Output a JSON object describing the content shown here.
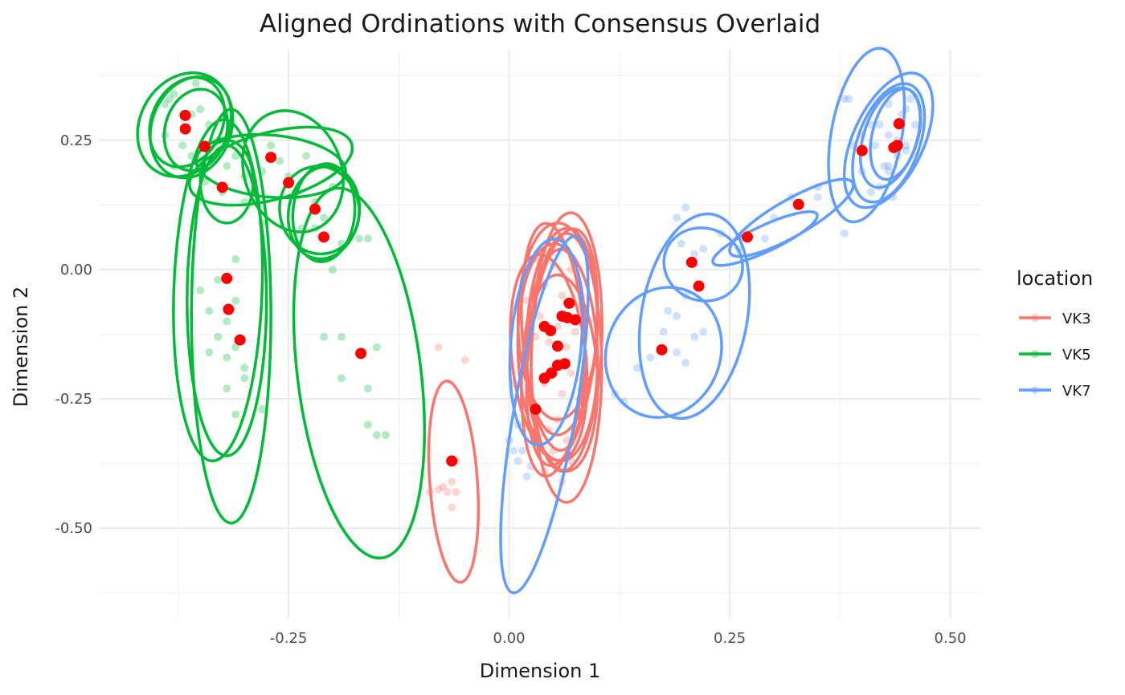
{
  "chart_data": {
    "type": "scatter",
    "title": "Aligned Ordinations with Consensus Overlaid",
    "xlabel": "Dimension 1",
    "ylabel": "Dimension 2",
    "xlim": [
      -0.465,
      0.535
    ],
    "ylim": [
      -0.675,
      0.425
    ],
    "x_ticks": [
      {
        "value": -0.25,
        "label": "-0.25"
      },
      {
        "value": 0.0,
        "label": "0.00"
      },
      {
        "value": 0.25,
        "label": "0.25"
      },
      {
        "value": 0.5,
        "label": "0.50"
      }
    ],
    "y_ticks": [
      {
        "value": -0.5,
        "label": "-0.50"
      },
      {
        "value": -0.25,
        "label": "-0.25"
      },
      {
        "value": 0.0,
        "label": "0.00"
      },
      {
        "value": 0.25,
        "label": "0.25"
      }
    ],
    "grid": true,
    "legend": {
      "title": "location",
      "position": "right",
      "entries": [
        {
          "label": "VK3",
          "color": "#F8766D"
        },
        {
          "label": "VK5",
          "color": "#00BA38"
        },
        {
          "label": "VK7",
          "color": "#619CFF"
        }
      ]
    },
    "consensus_color": "#FF0000",
    "series": [
      {
        "name": "VK3",
        "color": "#F8766D",
        "points": [
          [
            -0.08,
            -0.15
          ],
          [
            -0.05,
            -0.175
          ],
          [
            -0.06,
            -0.37
          ],
          [
            -0.065,
            -0.41
          ],
          [
            -0.075,
            -0.42
          ],
          [
            -0.08,
            -0.425
          ],
          [
            -0.07,
            -0.43
          ],
          [
            -0.06,
            -0.43
          ],
          [
            -0.09,
            -0.43
          ],
          [
            -0.065,
            -0.46
          ],
          [
            0.03,
            0.02
          ],
          [
            0.05,
            0.01
          ],
          [
            0.07,
            0.0
          ],
          [
            0.04,
            -0.03
          ],
          [
            0.06,
            -0.05
          ],
          [
            0.02,
            -0.06
          ],
          [
            0.08,
            -0.07
          ],
          [
            0.035,
            -0.09
          ],
          [
            0.055,
            -0.11
          ],
          [
            0.075,
            -0.12
          ],
          [
            0.03,
            -0.13
          ],
          [
            0.045,
            -0.14
          ],
          [
            0.065,
            -0.15
          ],
          [
            0.085,
            -0.16
          ],
          [
            0.02,
            -0.17
          ],
          [
            0.05,
            -0.19
          ],
          [
            0.07,
            -0.2
          ],
          [
            0.04,
            -0.22
          ],
          [
            0.06,
            -0.24
          ],
          [
            0.08,
            -0.25
          ],
          [
            0.03,
            -0.27
          ],
          [
            0.055,
            -0.29
          ],
          [
            0.045,
            -0.31
          ],
          [
            0.065,
            -0.33
          ],
          [
            0.05,
            -0.35
          ],
          [
            0.07,
            -0.37
          ],
          [
            0.04,
            -0.39
          ],
          [
            0.06,
            -0.41
          ],
          [
            0.09,
            -0.1
          ],
          [
            0.1,
            -0.14
          ]
        ],
        "ellipses": [
          {
            "cx": 0.055,
            "cy": -0.1,
            "rx": 0.045,
            "ry": 0.19,
            "angle": 0
          },
          {
            "cx": 0.06,
            "cy": -0.12,
            "rx": 0.04,
            "ry": 0.2,
            "angle": 3
          },
          {
            "cx": 0.05,
            "cy": -0.13,
            "rx": 0.035,
            "ry": 0.22,
            "angle": -4
          },
          {
            "cx": 0.065,
            "cy": -0.14,
            "rx": 0.04,
            "ry": 0.25,
            "angle": 2
          },
          {
            "cx": 0.055,
            "cy": -0.16,
            "rx": 0.045,
            "ry": 0.21,
            "angle": -2
          },
          {
            "cx": 0.06,
            "cy": -0.15,
            "rx": 0.038,
            "ry": 0.23,
            "angle": 6
          },
          {
            "cx": 0.045,
            "cy": -0.17,
            "rx": 0.042,
            "ry": 0.2,
            "angle": -6
          },
          {
            "cx": 0.065,
            "cy": -0.19,
            "rx": 0.04,
            "ry": 0.26,
            "angle": 0
          },
          {
            "cx": 0.05,
            "cy": -0.18,
            "rx": 0.035,
            "ry": 0.22,
            "angle": 4
          },
          {
            "cx": 0.06,
            "cy": -0.2,
            "rx": 0.04,
            "ry": 0.19,
            "angle": -3
          },
          {
            "cx": -0.063,
            "cy": -0.41,
            "rx": 0.027,
            "ry": 0.195,
            "angle": -4
          }
        ],
        "consensus": [
          [
            -0.065,
            -0.37
          ],
          [
            0.03,
            -0.27
          ],
          [
            0.04,
            -0.21
          ],
          [
            0.048,
            -0.2
          ],
          [
            0.055,
            -0.185
          ],
          [
            0.063,
            -0.182
          ],
          [
            0.055,
            -0.148
          ],
          [
            0.047,
            -0.118
          ],
          [
            0.04,
            -0.11
          ],
          [
            0.06,
            -0.09
          ],
          [
            0.066,
            -0.093
          ],
          [
            0.075,
            -0.097
          ],
          [
            0.068,
            -0.065
          ]
        ]
      },
      {
        "name": "VK5",
        "color": "#00BA38",
        "points": [
          [
            -0.385,
            0.33
          ],
          [
            -0.37,
            0.3
          ],
          [
            -0.355,
            0.36
          ],
          [
            -0.39,
            0.26
          ],
          [
            -0.37,
            0.24
          ],
          [
            -0.36,
            0.22
          ],
          [
            -0.34,
            0.28
          ],
          [
            -0.38,
            0.2
          ],
          [
            -0.35,
            0.31
          ],
          [
            -0.39,
            0.32
          ],
          [
            -0.33,
            0.25
          ],
          [
            -0.32,
            0.2
          ],
          [
            -0.3,
            0.18
          ],
          [
            -0.31,
            0.22
          ],
          [
            -0.345,
            0.17
          ],
          [
            -0.325,
            0.15
          ],
          [
            -0.3,
            0.13
          ],
          [
            -0.28,
            0.19
          ],
          [
            -0.27,
            0.24
          ],
          [
            -0.26,
            0.21
          ],
          [
            -0.25,
            0.18
          ],
          [
            -0.24,
            0.15
          ],
          [
            -0.23,
            0.22
          ],
          [
            -0.22,
            0.13
          ],
          [
            -0.21,
            0.1
          ],
          [
            -0.2,
            0.16
          ],
          [
            -0.19,
            0.05
          ],
          [
            -0.17,
            0.06
          ],
          [
            -0.2,
            0.0
          ],
          [
            -0.22,
            0.08
          ],
          [
            -0.235,
            0.08
          ],
          [
            -0.31,
            0.02
          ],
          [
            -0.33,
            -0.02
          ],
          [
            -0.35,
            -0.04
          ],
          [
            -0.34,
            -0.08
          ],
          [
            -0.32,
            -0.1
          ],
          [
            -0.31,
            -0.06
          ],
          [
            -0.33,
            -0.13
          ],
          [
            -0.31,
            -0.15
          ],
          [
            -0.32,
            -0.17
          ],
          [
            -0.3,
            -0.19
          ],
          [
            -0.34,
            -0.16
          ],
          [
            -0.32,
            -0.23
          ],
          [
            -0.3,
            -0.21
          ],
          [
            -0.31,
            -0.28
          ],
          [
            -0.28,
            -0.27
          ],
          [
            -0.21,
            -0.13
          ],
          [
            -0.19,
            -0.13
          ],
          [
            -0.19,
            -0.21
          ],
          [
            -0.16,
            -0.23
          ],
          [
            -0.15,
            -0.32
          ],
          [
            -0.14,
            -0.32
          ],
          [
            -0.16,
            -0.3
          ],
          [
            -0.15,
            -0.15
          ],
          [
            -0.16,
            0.06
          ],
          [
            -0.28,
            0.09
          ],
          [
            -0.29,
            0.17
          ],
          [
            -0.36,
            0.3
          ],
          [
            -0.38,
            0.34
          ],
          [
            -0.35,
            0.21
          ]
        ],
        "ellipses": [
          {
            "cx": -0.368,
            "cy": 0.28,
            "rx": 0.05,
            "ry": 0.105,
            "angle": 30
          },
          {
            "cx": -0.36,
            "cy": 0.275,
            "rx": 0.045,
            "ry": 0.1,
            "angle": 20
          },
          {
            "cx": -0.365,
            "cy": 0.285,
            "rx": 0.04,
            "ry": 0.09,
            "angle": 25
          },
          {
            "cx": -0.355,
            "cy": 0.27,
            "rx": 0.035,
            "ry": 0.08,
            "angle": 15
          },
          {
            "cx": -0.27,
            "cy": 0.2,
            "rx": 0.095,
            "ry": 0.065,
            "angle": -15
          },
          {
            "cx": -0.27,
            "cy": 0.2,
            "rx": 0.085,
            "ry": 0.06,
            "angle": 5
          },
          {
            "cx": -0.245,
            "cy": 0.19,
            "rx": 0.055,
            "ry": 0.12,
            "angle": -20
          },
          {
            "cx": -0.21,
            "cy": 0.11,
            "rx": 0.035,
            "ry": 0.095,
            "angle": 5
          },
          {
            "cx": -0.215,
            "cy": 0.115,
            "rx": 0.045,
            "ry": 0.085,
            "angle": -10
          },
          {
            "cx": -0.21,
            "cy": 0.11,
            "rx": 0.04,
            "ry": 0.09,
            "angle": 10
          },
          {
            "cx": -0.32,
            "cy": 0.17,
            "rx": 0.03,
            "ry": 0.08,
            "angle": 0
          },
          {
            "cx": -0.33,
            "cy": -0.04,
            "rx": 0.05,
            "ry": 0.33,
            "angle": 2
          },
          {
            "cx": -0.32,
            "cy": -0.06,
            "rx": 0.045,
            "ry": 0.3,
            "angle": 0
          },
          {
            "cx": -0.315,
            "cy": -0.09,
            "rx": 0.045,
            "ry": 0.4,
            "angle": 0
          },
          {
            "cx": -0.17,
            "cy": -0.2,
            "rx": 0.07,
            "ry": 0.36,
            "angle": -7
          }
        ],
        "consensus": [
          [
            -0.367,
            0.298
          ],
          [
            -0.367,
            0.272
          ],
          [
            -0.345,
            0.238
          ],
          [
            -0.325,
            0.159
          ],
          [
            -0.27,
            0.217
          ],
          [
            -0.25,
            0.168
          ],
          [
            -0.22,
            0.117
          ],
          [
            -0.21,
            0.063
          ],
          [
            -0.32,
            -0.017
          ],
          [
            -0.318,
            -0.077
          ],
          [
            -0.305,
            -0.136
          ],
          [
            -0.168,
            -0.162
          ]
        ]
      },
      {
        "name": "VK7",
        "color": "#619CFF",
        "points": [
          [
            -0.0,
            -0.33
          ],
          [
            0.005,
            -0.35
          ],
          [
            0.01,
            -0.37
          ],
          [
            0.015,
            -0.35
          ],
          [
            0.02,
            -0.4
          ],
          [
            0.025,
            -0.38
          ],
          [
            0.01,
            -0.3
          ],
          [
            0.015,
            -0.27
          ],
          [
            0.02,
            -0.25
          ],
          [
            0.005,
            -0.22
          ],
          [
            0.12,
            -0.24
          ],
          [
            0.13,
            -0.255
          ],
          [
            0.16,
            -0.17
          ],
          [
            0.2,
            -0.18
          ],
          [
            0.19,
            -0.16
          ],
          [
            0.175,
            -0.12
          ],
          [
            0.22,
            -0.12
          ],
          [
            0.21,
            -0.13
          ],
          [
            0.19,
            -0.09
          ],
          [
            0.18,
            -0.08
          ],
          [
            0.145,
            -0.19
          ],
          [
            0.19,
            0.1
          ],
          [
            0.2,
            0.12
          ],
          [
            0.195,
            0.05
          ],
          [
            0.21,
            0.03
          ],
          [
            0.22,
            0.04
          ],
          [
            0.2,
            -0.05
          ],
          [
            0.24,
            0.07
          ],
          [
            0.27,
            0.07
          ],
          [
            0.3,
            0.1
          ],
          [
            0.32,
            0.14
          ],
          [
            0.35,
            0.16
          ],
          [
            0.35,
            0.14
          ],
          [
            0.26,
            0.04
          ],
          [
            0.29,
            0.06
          ],
          [
            0.38,
            0.33
          ],
          [
            0.385,
            0.33
          ],
          [
            0.39,
            0.24
          ],
          [
            0.4,
            0.19
          ],
          [
            0.41,
            0.15
          ],
          [
            0.42,
            0.16
          ],
          [
            0.43,
            0.2
          ],
          [
            0.44,
            0.25
          ],
          [
            0.445,
            0.3
          ],
          [
            0.45,
            0.31
          ],
          [
            0.455,
            0.33
          ],
          [
            0.43,
            0.32
          ],
          [
            0.42,
            0.28
          ],
          [
            0.415,
            0.24
          ],
          [
            0.43,
            0.26
          ],
          [
            0.44,
            0.22
          ],
          [
            0.45,
            0.24
          ],
          [
            0.46,
            0.28
          ],
          [
            0.425,
            0.2
          ],
          [
            0.43,
            0.19
          ],
          [
            0.435,
            0.14
          ],
          [
            0.41,
            0.28
          ],
          [
            0.45,
            0.23
          ],
          [
            0.38,
            0.07
          ],
          [
            0.4,
            0.26
          ]
        ],
        "ellipses": [
          {
            "cx": 0.042,
            "cy": -0.14,
            "rx": 0.04,
            "ry": 0.2,
            "angle": 5
          },
          {
            "cx": 0.04,
            "cy": -0.28,
            "rx": 0.035,
            "ry": 0.35,
            "angle": 10
          },
          {
            "cx": 0.175,
            "cy": -0.16,
            "rx": 0.075,
            "ry": 0.11,
            "angle": -70
          },
          {
            "cx": 0.21,
            "cy": -0.09,
            "rx": 0.06,
            "ry": 0.2,
            "angle": 10
          },
          {
            "cx": 0.22,
            "cy": 0.01,
            "rx": 0.045,
            "ry": 0.07,
            "angle": 20
          },
          {
            "cx": 0.29,
            "cy": 0.06,
            "rx": 0.065,
            "ry": 0.025,
            "angle": -25
          },
          {
            "cx": 0.32,
            "cy": 0.1,
            "rx": 0.08,
            "ry": 0.035,
            "angle": -30
          },
          {
            "cx": 0.405,
            "cy": 0.26,
            "rx": 0.04,
            "ry": 0.17,
            "angle": 10
          },
          {
            "cx": 0.43,
            "cy": 0.25,
            "rx": 0.04,
            "ry": 0.14,
            "angle": 25
          },
          {
            "cx": 0.43,
            "cy": 0.245,
            "rx": 0.035,
            "ry": 0.12,
            "angle": 20
          },
          {
            "cx": 0.432,
            "cy": 0.255,
            "rx": 0.03,
            "ry": 0.1,
            "angle": 18
          },
          {
            "cx": 0.438,
            "cy": 0.262,
            "rx": 0.026,
            "ry": 0.09,
            "angle": 15
          }
        ],
        "consensus": [
          [
            0.173,
            -0.155
          ],
          [
            0.215,
            -0.032
          ],
          [
            0.207,
            0.014
          ],
          [
            0.27,
            0.063
          ],
          [
            0.328,
            0.126
          ],
          [
            0.4,
            0.23
          ],
          [
            0.436,
            0.236
          ],
          [
            0.44,
            0.24
          ],
          [
            0.442,
            0.282
          ]
        ]
      }
    ]
  }
}
